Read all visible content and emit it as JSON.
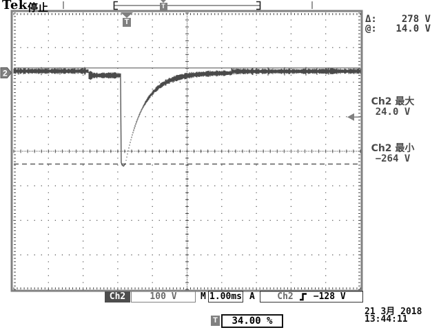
{
  "header": {
    "logo": "Tek",
    "status": "停止"
  },
  "markers": {
    "trigger_letter": "T",
    "channel_badge": "2"
  },
  "cursor_readout": {
    "delta_label": "Δ:",
    "delta_value": "278 V",
    "at_label": "@:",
    "at_value": "14.0 V"
  },
  "measurements": [
    {
      "label": "Ch2 最大",
      "value": "24.0 V"
    },
    {
      "label": "Ch2 最小",
      "value": "−264 V"
    }
  ],
  "bottom_bar": {
    "channel": "Ch2",
    "scale": "100 V",
    "time_label": "M",
    "timebase": "1.00ms",
    "acq_label": "A",
    "trigger_source": "Ch2",
    "trigger_slope_icon": "rising-edge",
    "trigger_level": "−128 V"
  },
  "horizontal_position": {
    "marker": "T",
    "value": "34.00 %"
  },
  "datetime": {
    "date": "21 3月 2018",
    "time": "13:44:11"
  },
  "colors": {
    "trace": "#4a4a4a",
    "grid": "#4a4a4a",
    "frame": "#808080",
    "marker_gray": "#808080",
    "cursor_dashed": "#808080",
    "text_dark": "#3d3d3d"
  },
  "chart_data": {
    "type": "line",
    "title": "Ch2 negative voltage transient with exponential recovery",
    "x_units": "ms",
    "y_units": "V",
    "time_per_div_ms": 1.0,
    "volts_per_div": 100,
    "h_divisions": 10,
    "v_divisions": 8,
    "ground_div_from_top": 1.73,
    "series": [
      {
        "name": "Ch2",
        "baseline_v": 5,
        "noise_vpp_v": 14,
        "pre_spike_dip_v": -3,
        "dip_start_div": 2.15,
        "spike_div_from_left": 3.1,
        "spike_min_v": -264,
        "recovery_tau_ms": 0.52,
        "settled_v": 4
      }
    ],
    "cursors": {
      "type": "voltage",
      "cursor1_v": 14.0,
      "cursor2_v": -264,
      "delta_v": 278
    },
    "trigger": {
      "source": "Ch2",
      "slope": "rising",
      "level_v": -128,
      "horizontal_position_pct": 34.0
    },
    "measurements": {
      "ch2_max_v": 24.0,
      "ch2_min_v": -264
    },
    "legend": "none",
    "grid": "dotted"
  }
}
